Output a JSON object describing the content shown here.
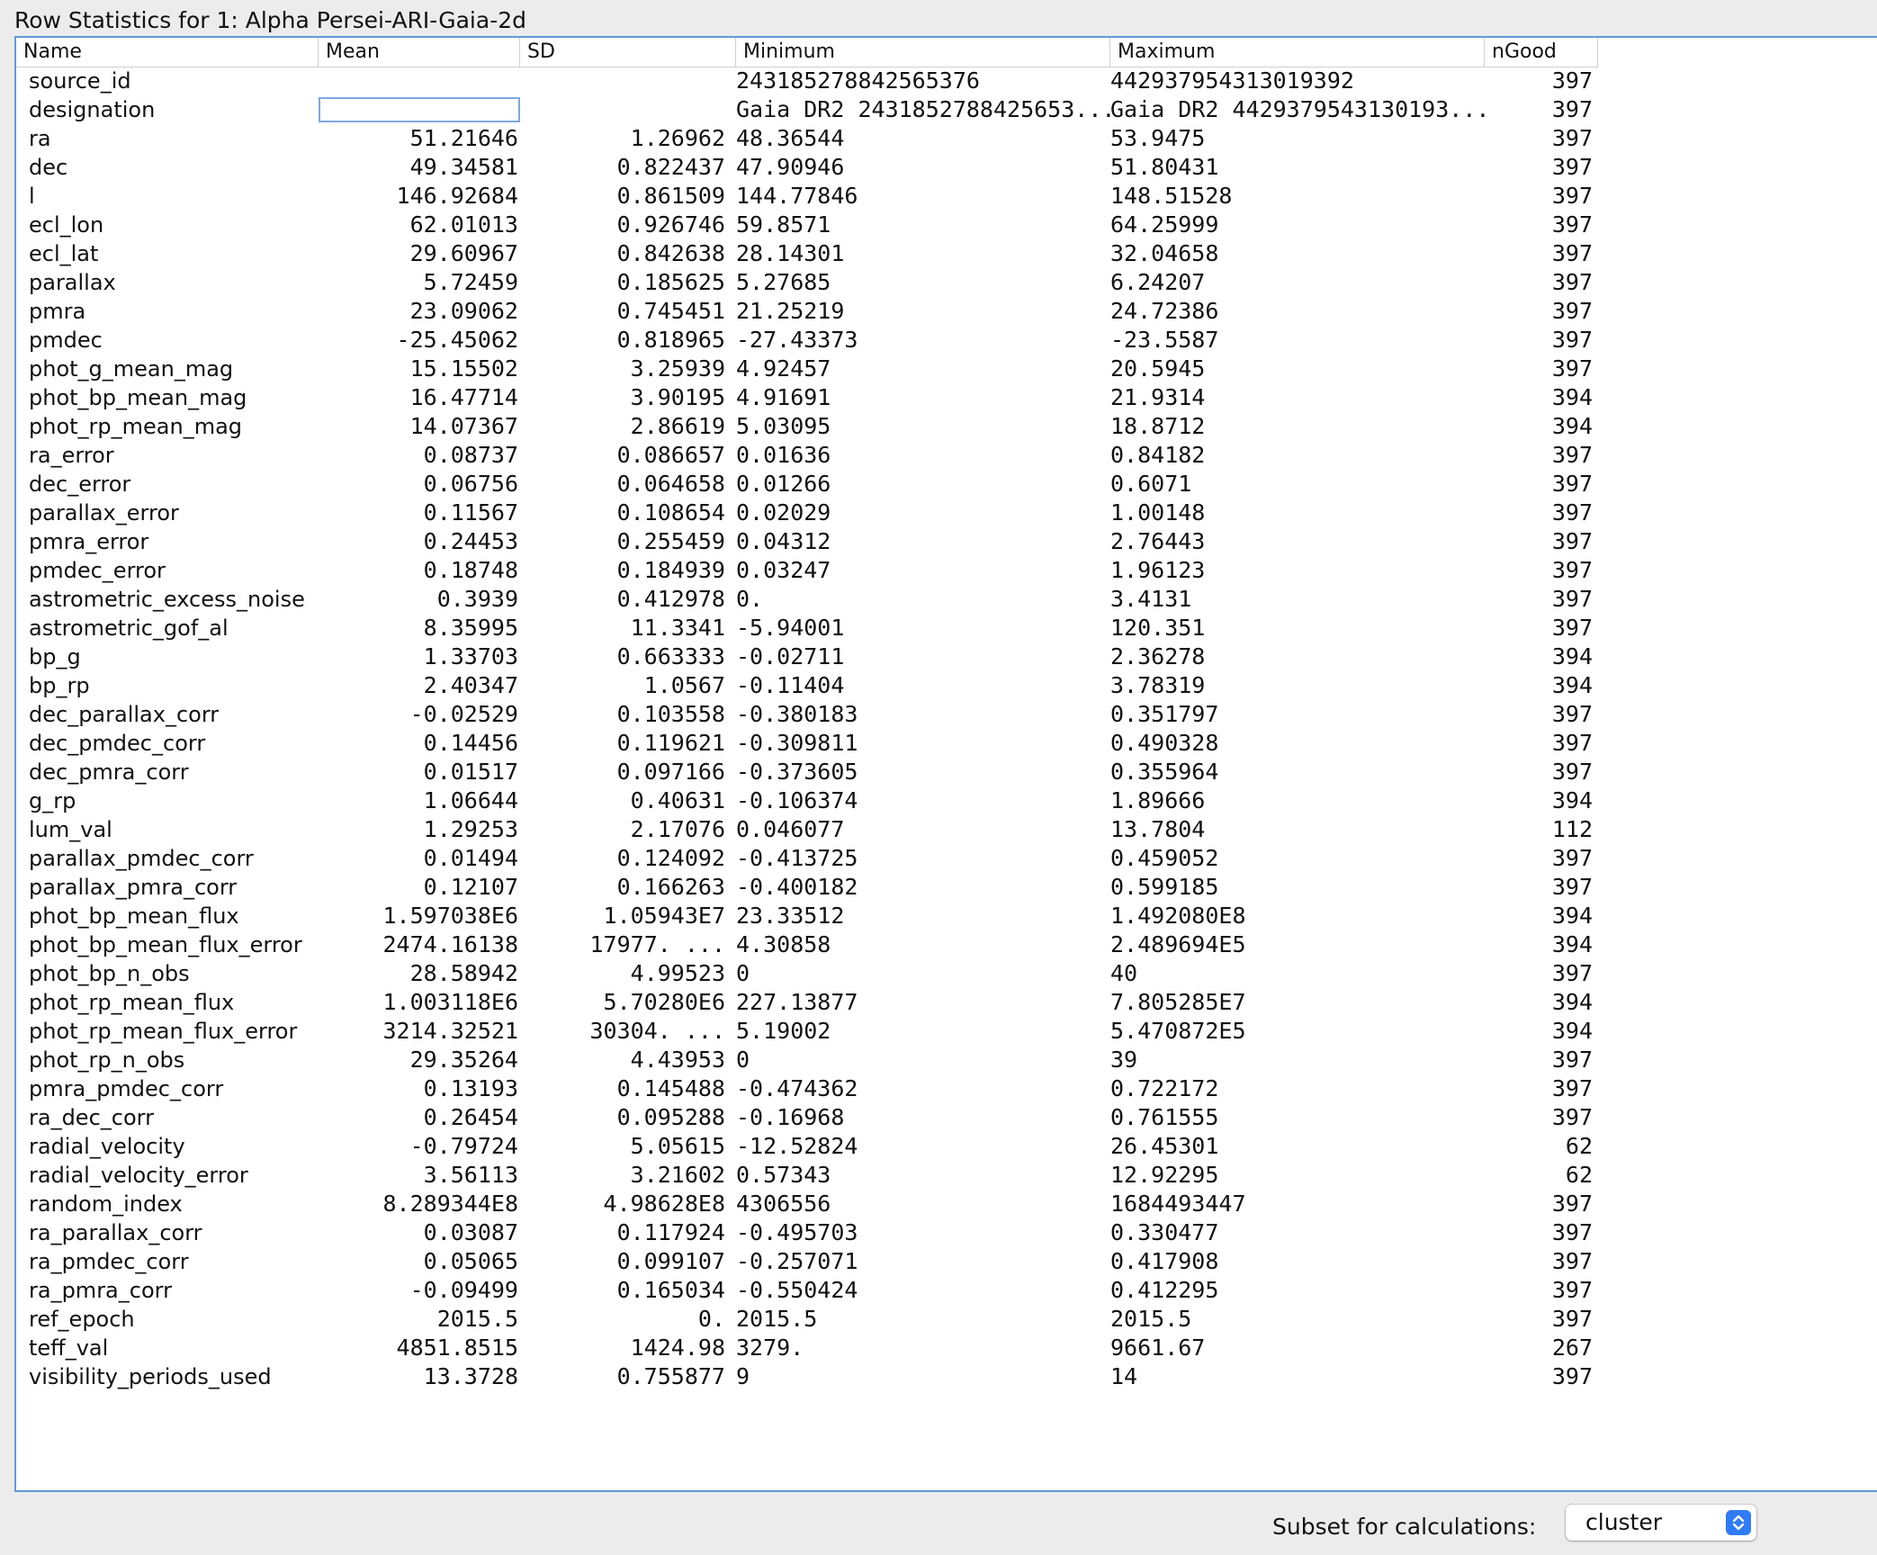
{
  "window": {
    "title": "Row Statistics for 1: Alpha Persei-ARI-Gaia-2d"
  },
  "table": {
    "columns": [
      "Name",
      "Mean",
      "SD",
      "Minimum",
      "Maximum",
      "nGood"
    ],
    "rows": [
      [
        "source_id",
        "",
        "",
        "243185278842565376",
        "442937954313019392",
        "397"
      ],
      [
        "designation",
        "",
        "",
        "Gaia DR2 2431852788425653...",
        "Gaia DR2 4429379543130193...",
        "397"
      ],
      [
        "ra",
        "51.21646",
        "1.26962",
        "48.36544",
        "53.9475",
        "397"
      ],
      [
        "dec",
        "49.34581",
        "0.822437",
        "47.90946",
        "51.80431",
        "397"
      ],
      [
        "l",
        "146.92684",
        "0.861509",
        "144.77846",
        "148.51528",
        "397"
      ],
      [
        "ecl_lon",
        "62.01013",
        "0.926746",
        "59.8571",
        "64.25999",
        "397"
      ],
      [
        "ecl_lat",
        "29.60967",
        "0.842638",
        "28.14301",
        "32.04658",
        "397"
      ],
      [
        "parallax",
        "5.72459",
        "0.185625",
        "5.27685",
        "6.24207",
        "397"
      ],
      [
        "pmra",
        "23.09062",
        "0.745451",
        "21.25219",
        "24.72386",
        "397"
      ],
      [
        "pmdec",
        "-25.45062",
        "0.818965",
        "-27.43373",
        "-23.5587",
        "397"
      ],
      [
        "phot_g_mean_mag",
        "15.15502",
        "3.25939",
        "4.92457",
        "20.5945",
        "397"
      ],
      [
        "phot_bp_mean_mag",
        "16.47714",
        "3.90195",
        "4.91691",
        "21.9314",
        "394"
      ],
      [
        "phot_rp_mean_mag",
        "14.07367",
        "2.86619",
        "5.03095",
        "18.8712",
        "394"
      ],
      [
        "ra_error",
        "0.08737",
        "0.086657",
        "0.01636",
        "0.84182",
        "397"
      ],
      [
        "dec_error",
        "0.06756",
        "0.064658",
        "0.01266",
        "0.6071",
        "397"
      ],
      [
        "parallax_error",
        "0.11567",
        "0.108654",
        "0.02029",
        "1.00148",
        "397"
      ],
      [
        "pmra_error",
        "0.24453",
        "0.255459",
        "0.04312",
        "2.76443",
        "397"
      ],
      [
        "pmdec_error",
        "0.18748",
        "0.184939",
        "0.03247",
        "1.96123",
        "397"
      ],
      [
        "astrometric_excess_noise",
        "0.3939",
        "0.412978",
        "0.",
        "3.4131",
        "397"
      ],
      [
        "astrometric_gof_al",
        "8.35995",
        "11.3341",
        "-5.94001",
        "120.351",
        "397"
      ],
      [
        "bp_g",
        "1.33703",
        "0.663333",
        "-0.02711",
        "2.36278",
        "394"
      ],
      [
        "bp_rp",
        "2.40347",
        "1.0567",
        "-0.11404",
        "3.78319",
        "394"
      ],
      [
        "dec_parallax_corr",
        "-0.02529",
        "0.103558",
        "-0.380183",
        "0.351797",
        "397"
      ],
      [
        "dec_pmdec_corr",
        "0.14456",
        "0.119621",
        "-0.309811",
        "0.490328",
        "397"
      ],
      [
        "dec_pmra_corr",
        "0.01517",
        "0.097166",
        "-0.373605",
        "0.355964",
        "397"
      ],
      [
        "g_rp",
        "1.06644",
        "0.40631",
        "-0.106374",
        "1.89666",
        "394"
      ],
      [
        "lum_val",
        "1.29253",
        "2.17076",
        "0.046077",
        "13.7804",
        "112"
      ],
      [
        "parallax_pmdec_corr",
        "0.01494",
        "0.124092",
        "-0.413725",
        "0.459052",
        "397"
      ],
      [
        "parallax_pmra_corr",
        "0.12107",
        "0.166263",
        "-0.400182",
        "0.599185",
        "397"
      ],
      [
        "phot_bp_mean_flux",
        "1.597038E6",
        "1.05943E7",
        "23.33512",
        "1.492080E8",
        "394"
      ],
      [
        "phot_bp_mean_flux_error",
        "2474.16138",
        "17977.    ...",
        "4.30858",
        "2.489694E5",
        "394"
      ],
      [
        "phot_bp_n_obs",
        "28.58942",
        "4.99523",
        "0",
        "40",
        "397"
      ],
      [
        "phot_rp_mean_flux",
        "1.003118E6",
        "5.70280E6",
        "227.13877",
        "7.805285E7",
        "394"
      ],
      [
        "phot_rp_mean_flux_error",
        "3214.32521",
        "30304.    ...",
        "5.19002",
        "5.470872E5",
        "394"
      ],
      [
        "phot_rp_n_obs",
        "29.35264",
        "4.43953",
        "0",
        "39",
        "397"
      ],
      [
        "pmra_pmdec_corr",
        "0.13193",
        "0.145488",
        "-0.474362",
        "0.722172",
        "397"
      ],
      [
        "ra_dec_corr",
        "0.26454",
        "0.095288",
        "-0.16968",
        "0.761555",
        "397"
      ],
      [
        "radial_velocity",
        "-0.79724",
        "5.05615",
        "-12.52824",
        "26.45301",
        "62"
      ],
      [
        "radial_velocity_error",
        "3.56113",
        "3.21602",
        "0.57343",
        "12.92295",
        "62"
      ],
      [
        "random_index",
        "8.289344E8",
        "4.98628E8",
        "4306556",
        "1684493447",
        "397"
      ],
      [
        "ra_parallax_corr",
        "0.03087",
        "0.117924",
        "-0.495703",
        "0.330477",
        "397"
      ],
      [
        "ra_pmdec_corr",
        "0.05065",
        "0.099107",
        "-0.257071",
        "0.417908",
        "397"
      ],
      [
        "ra_pmra_corr",
        "-0.09499",
        "0.165034",
        "-0.550424",
        "0.412295",
        "397"
      ],
      [
        "ref_epoch",
        "2015.5",
        "0.",
        "2015.5",
        "2015.5",
        "397"
      ],
      [
        "teff_val",
        "4851.8515",
        "1424.98",
        "3279.",
        "9661.67",
        "267"
      ],
      [
        "visibility_periods_used",
        "13.3728",
        "0.755877",
        "9",
        "14",
        "397"
      ]
    ]
  },
  "footer": {
    "subset_label": "Subset for calculations:",
    "subset_value": "cluster",
    "select_icon": "up-down-chevrons-icon"
  },
  "colors": {
    "accent": "#2f7cf6",
    "panel_border": "#5f9bd8",
    "background": "#ececec"
  }
}
